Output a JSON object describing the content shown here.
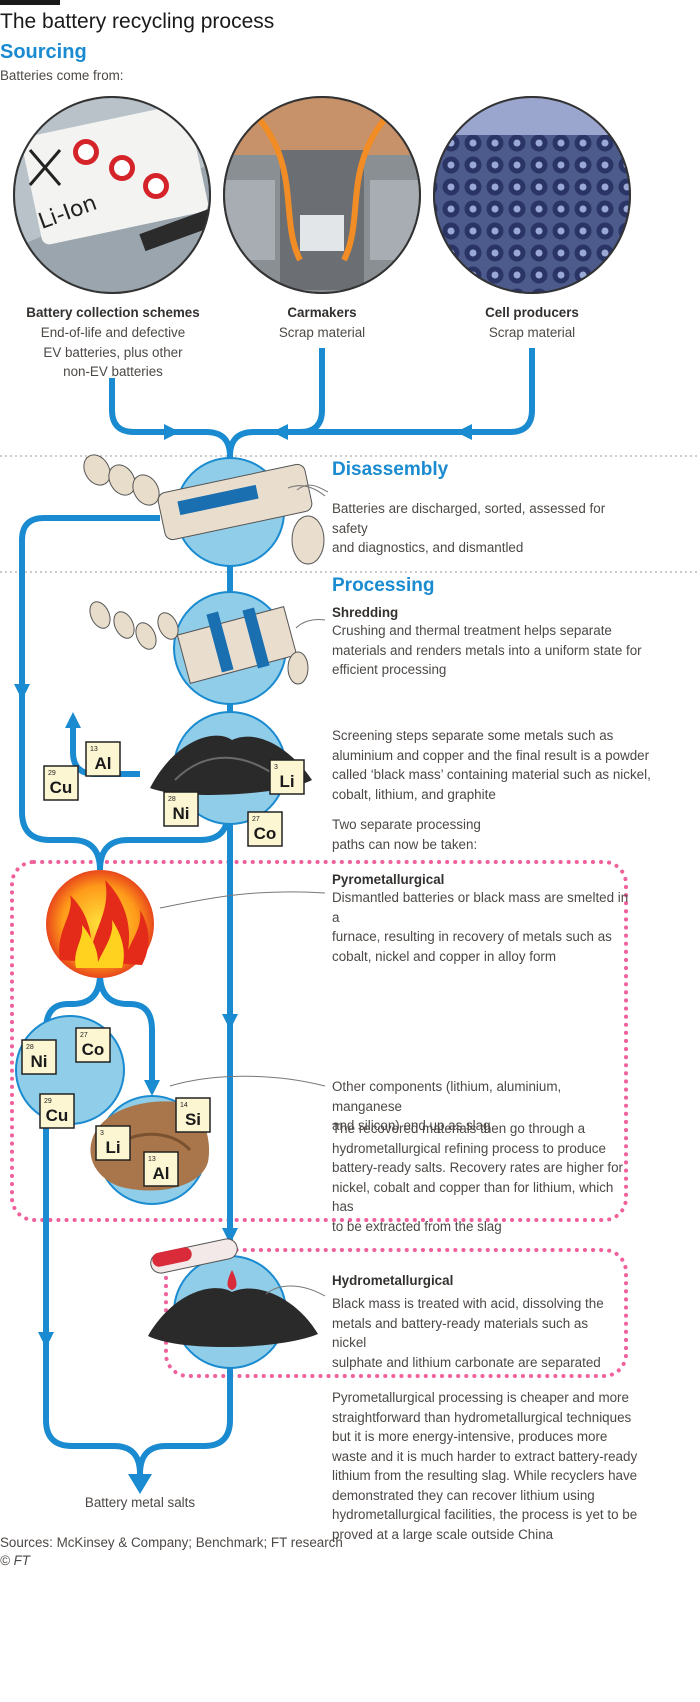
{
  "title": "The battery recycling process",
  "sourcing": {
    "heading": "Sourcing",
    "intro": "Batteries come from:",
    "sources": [
      {
        "name": "Battery collection schemes",
        "desc": [
          "End-of-life and defective",
          "EV batteries, plus other",
          "non-EV batteries"
        ]
      },
      {
        "name": "Carmakers",
        "desc": [
          "Scrap material"
        ]
      },
      {
        "name": "Cell producers",
        "desc": [
          "Scrap material"
        ]
      }
    ],
    "photo_label": "Li-Ion"
  },
  "disassembly": {
    "heading": "Disassembly",
    "text": [
      "Batteries are discharged, sorted, assessed for safety",
      "and diagnostics, and dismantled"
    ]
  },
  "processing": {
    "heading": "Processing",
    "shredding_title": "Shredding",
    "shredding_text": [
      "Crushing and thermal treatment helps separate",
      "materials and renders metals into a uniform state for",
      "efficient processing"
    ],
    "screening_text": [
      "Screening steps separate some metals such as",
      "aluminium and copper and the final result is a powder",
      "called ‘black mass’ containing material such as nickel,",
      "cobalt, lithium, and graphite"
    ],
    "paths_text": [
      "Two separate processing",
      "paths can now be taken:"
    ]
  },
  "pyro": {
    "title": "Pyrometallurgical",
    "text": [
      "Dismantled batteries or black mass are smelted in a",
      "furnace, resulting in recovery of metals such as",
      "cobalt, nickel and copper in alloy form"
    ],
    "slag_text": [
      "Other components (lithium, aluminium, manganese",
      "and silicon) end up as slag"
    ],
    "refine_text": [
      "The recovered materials then go through a",
      "hydrometallurgical refining process to produce",
      "battery-ready salts. Recovery rates are higher for",
      "nickel, cobalt and copper than for lithium, which has",
      "to be extracted from the slag"
    ]
  },
  "hydro": {
    "title": "Hydrometallurgical",
    "text": [
      "Black mass is treated with acid, dissolving the",
      "metals and battery-ready materials such as nickel",
      "sulphate and lithium carbonate are separated"
    ],
    "compare_text": [
      "Pyrometallurgical processing is cheaper and more",
      "straightforward than hydrometallurgical techniques",
      "but it is more energy-intensive, produces more",
      "waste and it is much harder to extract battery-ready",
      "lithium from the resulting slag. While recyclers have",
      "demonstrated they can recover lithium using",
      "hydrometallurgical facilities, the process is yet to be",
      "proved at a large scale outside China"
    ]
  },
  "output_label": "Battery metal salts",
  "elements": {
    "screening": [
      {
        "num": "13",
        "sym": "Al"
      },
      {
        "num": "29",
        "sym": "Cu"
      },
      {
        "num": "28",
        "sym": "Ni"
      },
      {
        "num": "3",
        "sym": "Li"
      },
      {
        "num": "27",
        "sym": "Co"
      }
    ],
    "alloy": [
      {
        "num": "28",
        "sym": "Ni"
      },
      {
        "num": "27",
        "sym": "Co"
      },
      {
        "num": "29",
        "sym": "Cu"
      }
    ],
    "slag": [
      {
        "num": "14",
        "sym": "Si"
      },
      {
        "num": "3",
        "sym": "Li"
      },
      {
        "num": "13",
        "sym": "Al"
      }
    ]
  },
  "footer": {
    "sources": "Sources: McKinsey & Company; Benchmark; FT research",
    "copyright": "© FT"
  },
  "colors": {
    "flow_blue": "#1a8bd0",
    "circle_blue": "#8fcde9",
    "pink_dotted": "#f0609a",
    "element_tile": "#fdf6d2"
  }
}
